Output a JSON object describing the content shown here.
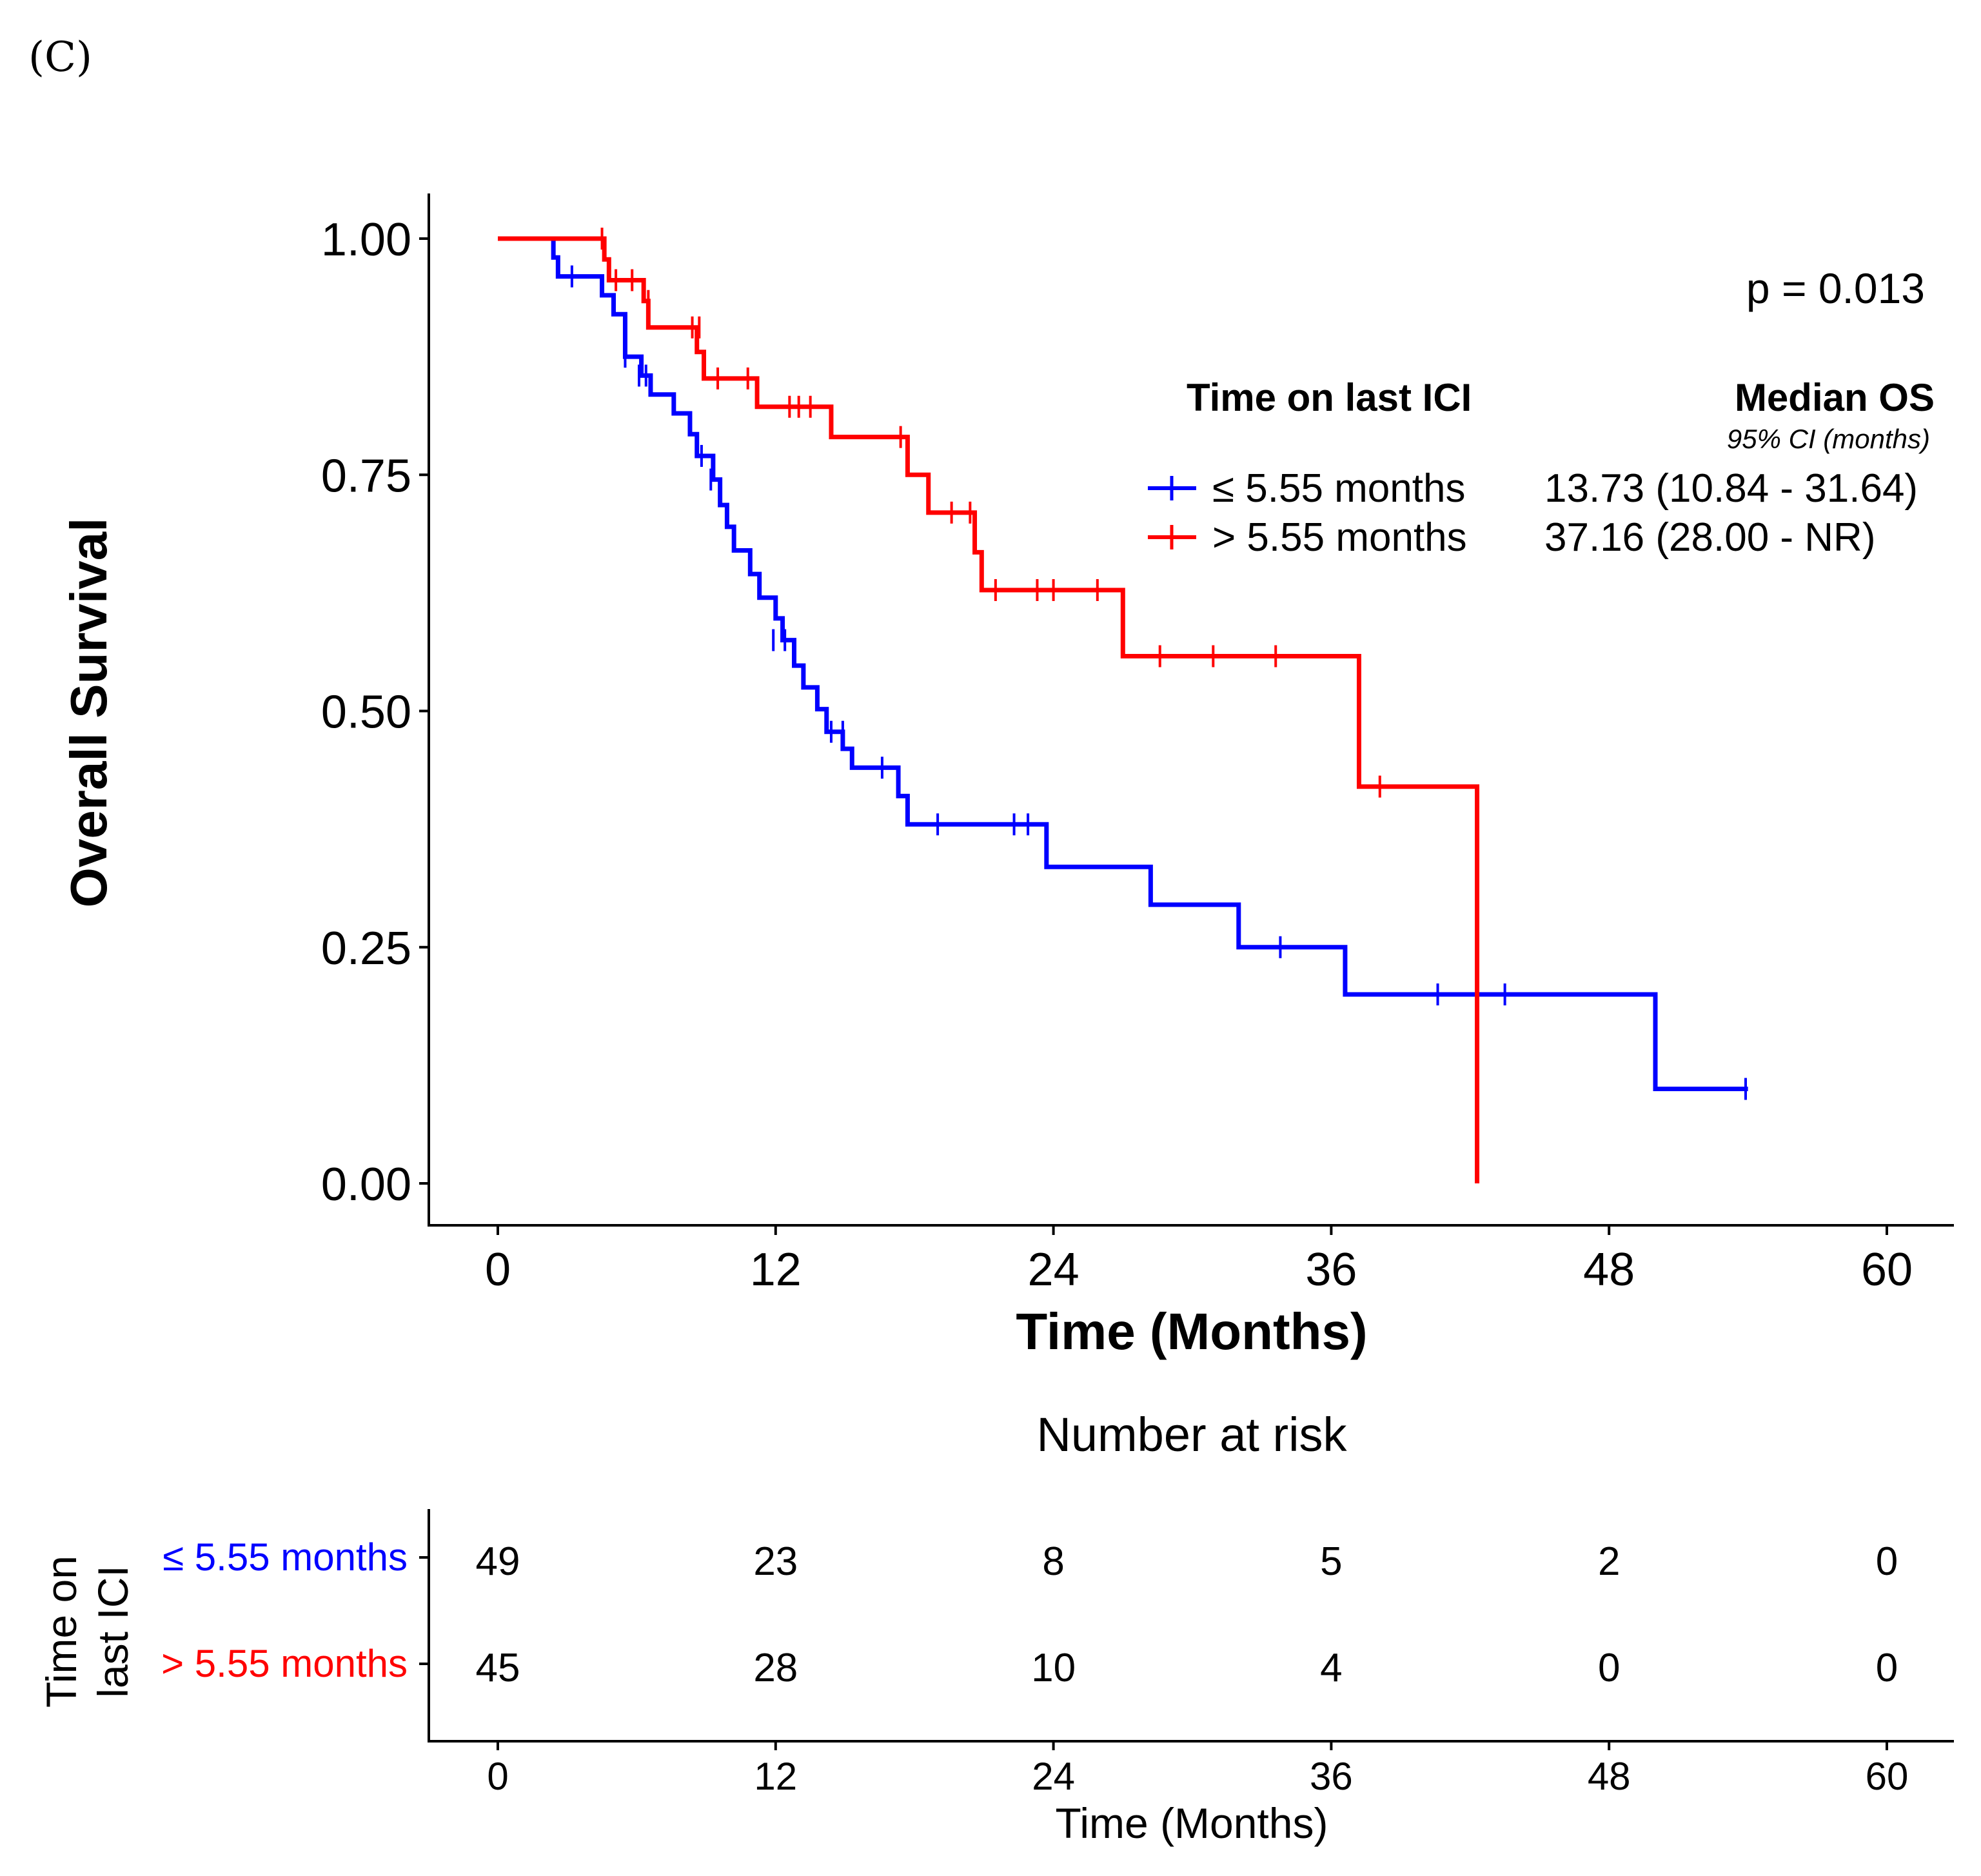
{
  "panel_label": "(C)",
  "chart_data": {
    "type": "line",
    "subtype": "kaplan-meier",
    "title": "",
    "xlabel": "Time (Months)",
    "ylabel": "Overall Survival",
    "xlim": [
      0,
      60
    ],
    "ylim": [
      0,
      1
    ],
    "x_ticks": [
      "0",
      "12",
      "24",
      "36",
      "48",
      "60"
    ],
    "y_ticks": [
      "0.00",
      "0.25",
      "0.50",
      "0.75",
      "1.00"
    ],
    "p_value_text": "p = 0.013",
    "legend": {
      "title": "Time on last ICI",
      "median_title": "Median OS",
      "median_subtitle": "95% CI (months)"
    },
    "series": [
      {
        "name": "≤ 5.55 months",
        "median": "13.73 (10.84 - 31.64)",
        "color": "#0000ff",
        "steps": [
          [
            0,
            1.0
          ],
          [
            2.4,
            0.98
          ],
          [
            2.6,
            0.96
          ],
          [
            4.5,
            0.94
          ],
          [
            5.0,
            0.92
          ],
          [
            5.5,
            0.875
          ],
          [
            6.2,
            0.855
          ],
          [
            6.6,
            0.835
          ],
          [
            7.6,
            0.815
          ],
          [
            8.3,
            0.793
          ],
          [
            8.6,
            0.77
          ],
          [
            9.3,
            0.745
          ],
          [
            9.6,
            0.718
          ],
          [
            9.9,
            0.695
          ],
          [
            10.2,
            0.67
          ],
          [
            10.9,
            0.645
          ],
          [
            11.3,
            0.62
          ],
          [
            12.0,
            0.598
          ],
          [
            12.3,
            0.575
          ],
          [
            12.8,
            0.548
          ],
          [
            13.2,
            0.525
          ],
          [
            13.8,
            0.502
          ],
          [
            14.2,
            0.478
          ],
          [
            14.9,
            0.46
          ],
          [
            15.3,
            0.44
          ],
          [
            17.3,
            0.41
          ],
          [
            17.7,
            0.38
          ],
          [
            23.7,
            0.335
          ],
          [
            28.2,
            0.295
          ],
          [
            32.0,
            0.25
          ],
          [
            36.6,
            0.2
          ],
          [
            50.0,
            0.1
          ],
          [
            54.0,
            0.1
          ]
        ],
        "censors": [
          [
            3.2,
            0.96
          ],
          [
            5.5,
            0.875
          ],
          [
            6.1,
            0.855
          ],
          [
            6.4,
            0.855
          ],
          [
            8.8,
            0.77
          ],
          [
            9.2,
            0.745
          ],
          [
            11.9,
            0.575
          ],
          [
            12.4,
            0.575
          ],
          [
            14.4,
            0.478
          ],
          [
            14.9,
            0.478
          ],
          [
            16.6,
            0.44
          ],
          [
            19.0,
            0.38
          ],
          [
            22.3,
            0.38
          ],
          [
            22.9,
            0.38
          ],
          [
            33.8,
            0.25
          ],
          [
            40.6,
            0.2
          ],
          [
            43.5,
            0.2
          ],
          [
            53.9,
            0.1
          ]
        ]
      },
      {
        "name": "> 5.55 months",
        "color": "#ff0000",
        "median": "37.16 (28.00 - NR)",
        "steps": [
          [
            0,
            1.0
          ],
          [
            4.6,
            0.978
          ],
          [
            4.8,
            0.956
          ],
          [
            6.3,
            0.934
          ],
          [
            6.5,
            0.906
          ],
          [
            8.6,
            0.88
          ],
          [
            8.9,
            0.852
          ],
          [
            11.2,
            0.822
          ],
          [
            14.4,
            0.79
          ],
          [
            17.7,
            0.75
          ],
          [
            18.6,
            0.71
          ],
          [
            20.6,
            0.668
          ],
          [
            20.9,
            0.628
          ],
          [
            27.0,
            0.558
          ],
          [
            37.2,
            0.42
          ],
          [
            42.3,
            0.0
          ]
        ],
        "censors": [
          [
            4.5,
            1.0
          ],
          [
            5.1,
            0.956
          ],
          [
            5.8,
            0.956
          ],
          [
            6.5,
            0.934
          ],
          [
            8.4,
            0.906
          ],
          [
            8.7,
            0.906
          ],
          [
            9.5,
            0.852
          ],
          [
            10.8,
            0.852
          ],
          [
            12.6,
            0.822
          ],
          [
            13.0,
            0.822
          ],
          [
            13.5,
            0.822
          ],
          [
            17.4,
            0.79
          ],
          [
            19.6,
            0.71
          ],
          [
            20.4,
            0.71
          ],
          [
            21.5,
            0.628
          ],
          [
            23.3,
            0.628
          ],
          [
            24.0,
            0.628
          ],
          [
            25.9,
            0.628
          ],
          [
            28.6,
            0.558
          ],
          [
            30.9,
            0.558
          ],
          [
            33.6,
            0.558
          ],
          [
            38.1,
            0.42
          ]
        ]
      }
    ]
  },
  "risk_table": {
    "title": "Number at risk",
    "ylabel_line1": "Time on",
    "ylabel_line2": "last ICI",
    "xlabel": "Time (Months)",
    "x_ticks": [
      "0",
      "12",
      "24",
      "36",
      "48",
      "60"
    ],
    "rows": [
      {
        "label": "≤ 5.55 months",
        "color": "#0000ff",
        "values": [
          "49",
          "23",
          "8",
          "5",
          "2",
          "0"
        ]
      },
      {
        "label": "> 5.55 months",
        "color": "#ff0000",
        "values": [
          "45",
          "28",
          "10",
          "4",
          "0",
          "0"
        ]
      }
    ]
  }
}
